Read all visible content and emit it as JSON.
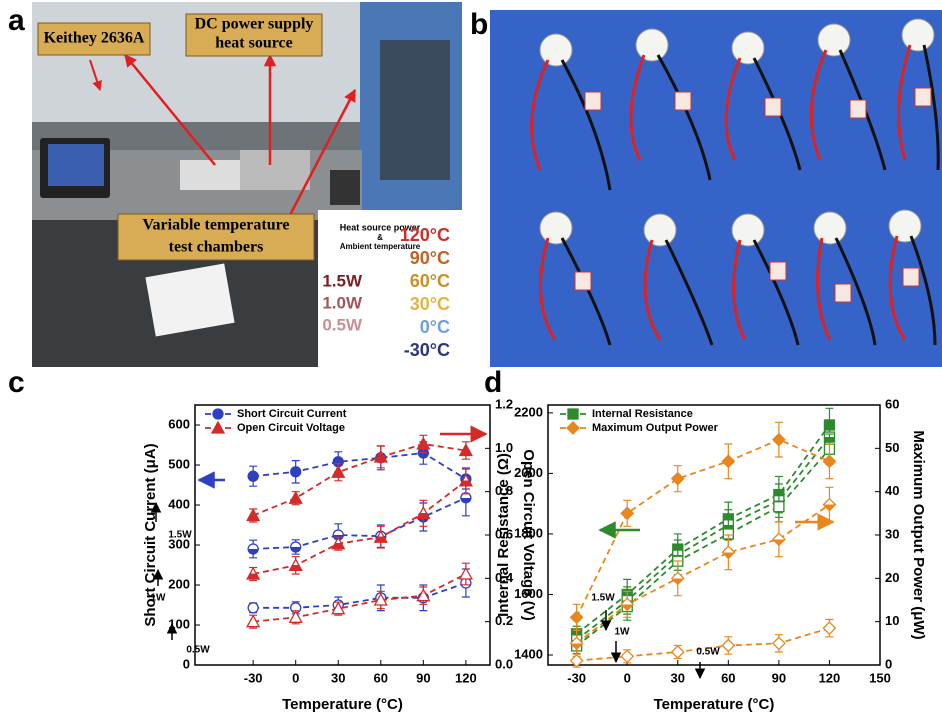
{
  "panel_labels": [
    "a",
    "b",
    "c",
    "d"
  ],
  "photo_a": {
    "callouts": [
      "Keithey 2636A",
      "DC power supply",
      "heat source",
      "Variable temperature",
      "test chambers"
    ],
    "legend_heading": [
      "Heat source power",
      "&",
      "Ambient temperature"
    ],
    "powers": [
      "1.5W",
      "1.0W",
      "0.5W"
    ],
    "power_colors": [
      "#7b1e24",
      "#a4555a",
      "#c69196"
    ],
    "temperatures": [
      "120°C",
      "90°C",
      "60°C",
      "30°C",
      "0°C",
      "-30°C"
    ],
    "temperature_colors": [
      "#c9302c",
      "#c0622a",
      "#c88f2a",
      "#e2b34a",
      "#6f9fe0",
      "#2b3585"
    ]
  },
  "chart_data": [
    {
      "type": "line",
      "x_label": "Temperature (°C)",
      "y_label": "Short Circuit Current (μA)",
      "y2_label": "Open Circuit Voltage (V)",
      "x": [
        -30,
        0,
        30,
        60,
        90,
        120
      ],
      "xlim": [
        -71,
        137
      ],
      "xticks": [
        -30,
        0,
        30,
        60,
        90,
        120
      ],
      "ylim": [
        0,
        650
      ],
      "yticks": [
        0,
        100,
        200,
        300,
        400,
        500,
        600
      ],
      "y2lim": [
        0,
        1.2
      ],
      "y2ticks": [
        {
          "value": 0,
          "label": "0.0"
        },
        0.2,
        0.4,
        0.6,
        0.8,
        {
          "value": 1,
          "label": "1.0"
        },
        1.2
      ],
      "legend": "upper left",
      "annotations": [
        "1.5W",
        "1W",
        "0.5W"
      ],
      "series": [
        {
          "name": "Short Circuit Current",
          "color": "#2f3fc2",
          "marker": "circle",
          "fill": "full",
          "values": [
            472,
            483,
            508,
            518,
            530,
            465
          ],
          "errors": [
            25,
            28,
            25,
            30,
            28,
            25
          ]
        },
        {
          "color": "#2f3fc2",
          "marker": "circle",
          "fill": "half",
          "values": [
            290,
            295,
            325,
            322,
            370,
            418
          ],
          "errors": [
            22,
            18,
            28,
            28,
            35,
            45
          ]
        },
        {
          "color": "#2f3fc2",
          "marker": "circle",
          "fill": "none",
          "values": [
            143,
            143,
            150,
            168,
            168,
            205
          ],
          "errors": [
            12,
            15,
            20,
            32,
            32,
            35
          ]
        },
        {
          "name": "Open Circuit Voltage",
          "color": "#d42a2a",
          "marker": "triangle",
          "fill": "full",
          "axis": "y2",
          "values": [
            0.69,
            0.77,
            0.89,
            0.96,
            1.02,
            0.99
          ],
          "errors": [
            0.03,
            0.03,
            0.04,
            0.05,
            0.04,
            0.04
          ]
        },
        {
          "color": "#d42a2a",
          "marker": "triangle",
          "fill": "half",
          "axis": "y2",
          "values": [
            0.42,
            0.46,
            0.56,
            0.59,
            0.7,
            0.85
          ],
          "errors": [
            0.03,
            0.04,
            0.03,
            0.05,
            0.06,
            0.06
          ]
        },
        {
          "color": "#d42a2a",
          "marker": "triangle",
          "fill": "none",
          "axis": "y2",
          "values": [
            0.2,
            0.22,
            0.26,
            0.3,
            0.32,
            0.42
          ],
          "errors": [
            0.03,
            0.03,
            0.03,
            0.04,
            0.04,
            0.05
          ]
        }
      ]
    },
    {
      "type": "line",
      "x_label": "Temperature (°C)",
      "y_label": "Internal Resistance (Ω)",
      "y2_label": "Maximum Output Power (μW)",
      "x": [
        -30,
        0,
        30,
        60,
        90,
        120
      ],
      "xlim": [
        -47,
        150
      ],
      "xticks": [
        -30,
        0,
        30,
        60,
        90,
        120,
        150
      ],
      "ylim": [
        1367,
        2226
      ],
      "yticks": [
        1400,
        1600,
        1800,
        2000,
        2200
      ],
      "y2lim": [
        0,
        60
      ],
      "y2ticks": [
        0,
        10,
        20,
        30,
        40,
        50,
        60
      ],
      "legend": "upper left",
      "annotations": [
        "1.5W",
        "1W",
        "0.5W"
      ],
      "series": [
        {
          "name": "Internal Resistance",
          "color": "#2d8a2d",
          "marker": "square",
          "fill": "full",
          "values": [
            1470,
            1600,
            1750,
            1850,
            1930,
            2160
          ],
          "errors": [
            45,
            50,
            50,
            55,
            60,
            55
          ]
        },
        {
          "color": "#2d8a2d",
          "marker": "square",
          "fill": "half",
          "values": [
            1450,
            1580,
            1730,
            1830,
            1910,
            2120
          ],
          "errors": [
            45,
            45,
            50,
            50,
            55,
            55
          ]
        },
        {
          "color": "#2d8a2d",
          "marker": "square",
          "fill": "none",
          "values": [
            1430,
            1560,
            1710,
            1800,
            1890,
            2080
          ],
          "errors": [
            40,
            45,
            45,
            50,
            50,
            50
          ]
        },
        {
          "name": "Maximum Output Power",
          "color": "#e8871e",
          "marker": "diamond",
          "fill": "full",
          "axis": "y2",
          "values": [
            11,
            35,
            43,
            47,
            52,
            47
          ],
          "errors": [
            3,
            3,
            3,
            4,
            4,
            4
          ]
        },
        {
          "color": "#e8871e",
          "marker": "diamond",
          "fill": "half",
          "axis": "y2",
          "values": [
            5,
            14,
            20,
            26,
            29,
            37
          ],
          "errors": [
            3,
            3,
            4,
            4,
            4,
            4
          ]
        },
        {
          "color": "#e8871e",
          "marker": "diamond",
          "fill": "none",
          "axis": "y2",
          "values": [
            1,
            2,
            3,
            4.5,
            5,
            8.5
          ],
          "errors": [
            1.5,
            1.5,
            1.5,
            2,
            2,
            2
          ]
        }
      ]
    }
  ]
}
